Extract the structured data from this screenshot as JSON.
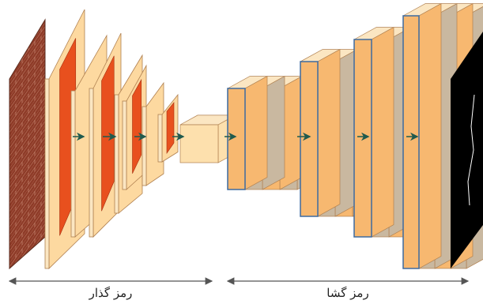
{
  "encoder": {
    "label": "رمز گذار"
  },
  "decoder": {
    "label": "رمز گشا"
  }
}
